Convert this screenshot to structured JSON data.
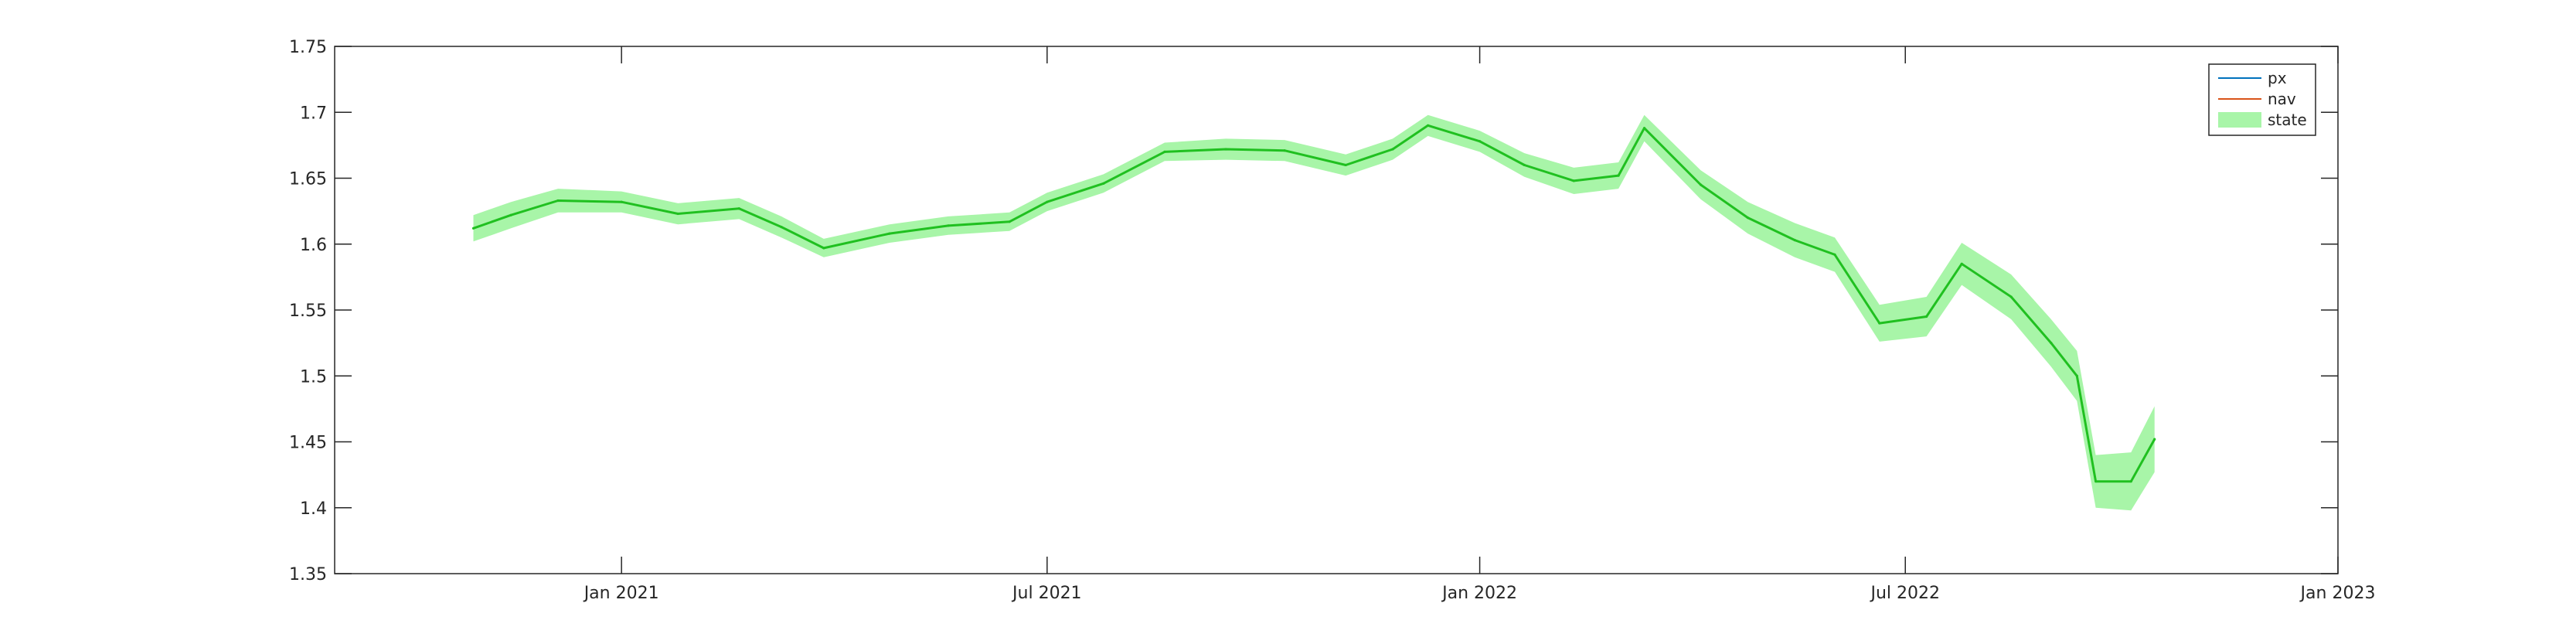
{
  "chart_data": {
    "type": "line",
    "title": "",
    "xlabel": "",
    "ylabel": "",
    "xlim": [
      "2020-09-01",
      "2023-01-01"
    ],
    "ylim": [
      1.35,
      1.75
    ],
    "x_ticks": [
      {
        "date": "2021-01-01",
        "label": "Jan 2021"
      },
      {
        "date": "2021-07-01",
        "label": "Jul 2021"
      },
      {
        "date": "2022-01-01",
        "label": "Jan 2022"
      },
      {
        "date": "2022-07-01",
        "label": "Jul 2022"
      },
      {
        "date": "2023-01-01",
        "label": "Jan 2023"
      }
    ],
    "y_ticks": [
      1.35,
      1.4,
      1.45,
      1.5,
      1.55,
      1.6,
      1.65,
      1.7,
      1.75
    ],
    "y_tick_labels": [
      "1.35",
      "1.4",
      "1.45",
      "1.5",
      "1.55",
      "1.6",
      "1.65",
      "1.7",
      "1.75"
    ],
    "legend_position": "top-right",
    "legend": [
      {
        "label": "px",
        "color": "#0072BD",
        "kind": "line"
      },
      {
        "label": "nav",
        "color": "#D95319",
        "kind": "line"
      },
      {
        "label": "state",
        "color": "#A8F5A8",
        "kind": "patch"
      }
    ],
    "series": [
      {
        "name": "state",
        "color": "#20C020",
        "band_color": "#A8F5A8",
        "band_halfwidth": [
          0.01,
          0.01,
          0.009,
          0.008,
          0.008,
          0.008,
          0.008,
          0.007,
          0.007,
          0.007,
          0.007,
          0.007,
          0.007,
          0.007,
          0.008,
          0.008,
          0.008,
          0.008,
          0.008,
          0.008,
          0.009,
          0.01,
          0.01,
          0.01,
          0.011,
          0.012,
          0.013,
          0.013,
          0.014,
          0.015,
          0.016,
          0.017,
          0.018,
          0.019,
          0.02,
          0.022,
          0.025
        ],
        "points": [
          [
            "2020-10-30",
            1.612
          ],
          [
            "2020-11-15",
            1.622
          ],
          [
            "2020-12-05",
            1.633
          ],
          [
            "2021-01-01",
            1.632
          ],
          [
            "2021-01-25",
            1.623
          ],
          [
            "2021-02-20",
            1.627
          ],
          [
            "2021-03-10",
            1.613
          ],
          [
            "2021-03-28",
            1.597
          ],
          [
            "2021-04-25",
            1.608
          ],
          [
            "2021-05-20",
            1.614
          ],
          [
            "2021-06-15",
            1.617
          ],
          [
            "2021-07-01",
            1.632
          ],
          [
            "2021-07-25",
            1.646
          ],
          [
            "2021-08-20",
            1.67
          ],
          [
            "2021-09-15",
            1.672
          ],
          [
            "2021-10-10",
            1.671
          ],
          [
            "2021-11-05",
            1.66
          ],
          [
            "2021-11-25",
            1.672
          ],
          [
            "2021-12-10",
            1.69
          ],
          [
            "2022-01-01",
            1.678
          ],
          [
            "2022-01-20",
            1.66
          ],
          [
            "2022-02-10",
            1.648
          ],
          [
            "2022-03-01",
            1.652
          ],
          [
            "2022-03-12",
            1.688
          ],
          [
            "2022-04-05",
            1.645
          ],
          [
            "2022-04-25",
            1.62
          ],
          [
            "2022-05-15",
            1.603
          ],
          [
            "2022-06-01",
            1.592
          ],
          [
            "2022-06-20",
            1.54
          ],
          [
            "2022-07-10",
            1.545
          ],
          [
            "2022-07-25",
            1.585
          ],
          [
            "2022-08-15",
            1.56
          ],
          [
            "2022-09-01",
            1.525
          ],
          [
            "2022-09-12",
            1.5
          ],
          [
            "2022-09-20",
            1.42
          ],
          [
            "2022-10-05",
            1.42
          ],
          [
            "2022-10-15",
            1.452
          ]
        ]
      }
    ]
  }
}
